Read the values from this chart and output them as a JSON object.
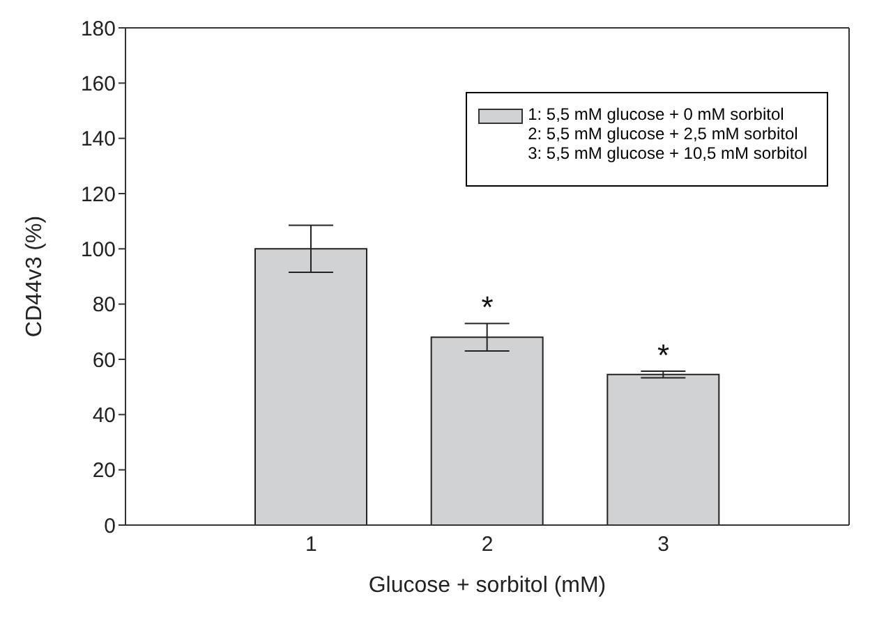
{
  "chart_data": {
    "type": "bar",
    "xlabel": "Glucose + sorbitol (mM)",
    "ylabel": "CD44v3 (%)",
    "categories": [
      "1",
      "2",
      "3"
    ],
    "series": [
      {
        "name": "1: 5,5 mM glucose + 0 mM sorbitol\n2: 5,5 mM glucose + 2,5 mM sorbitol\n3: 5,5 mM glucose + 10,5 mM sorbitol",
        "color": "#d0d2d3",
        "values": [
          100,
          68,
          54.5
        ],
        "errors": [
          8.5,
          5,
          1.2
        ]
      }
    ],
    "ylim": [
      0,
      180
    ],
    "yticks": [
      0,
      20,
      40,
      60,
      80,
      100,
      120,
      140,
      160,
      180
    ],
    "grid": false,
    "legend": "top right",
    "annotations": [
      {
        "text": "*",
        "x": "2",
        "y": 73
      },
      {
        "text": "*",
        "x": "3",
        "y": 55.7
      }
    ]
  }
}
